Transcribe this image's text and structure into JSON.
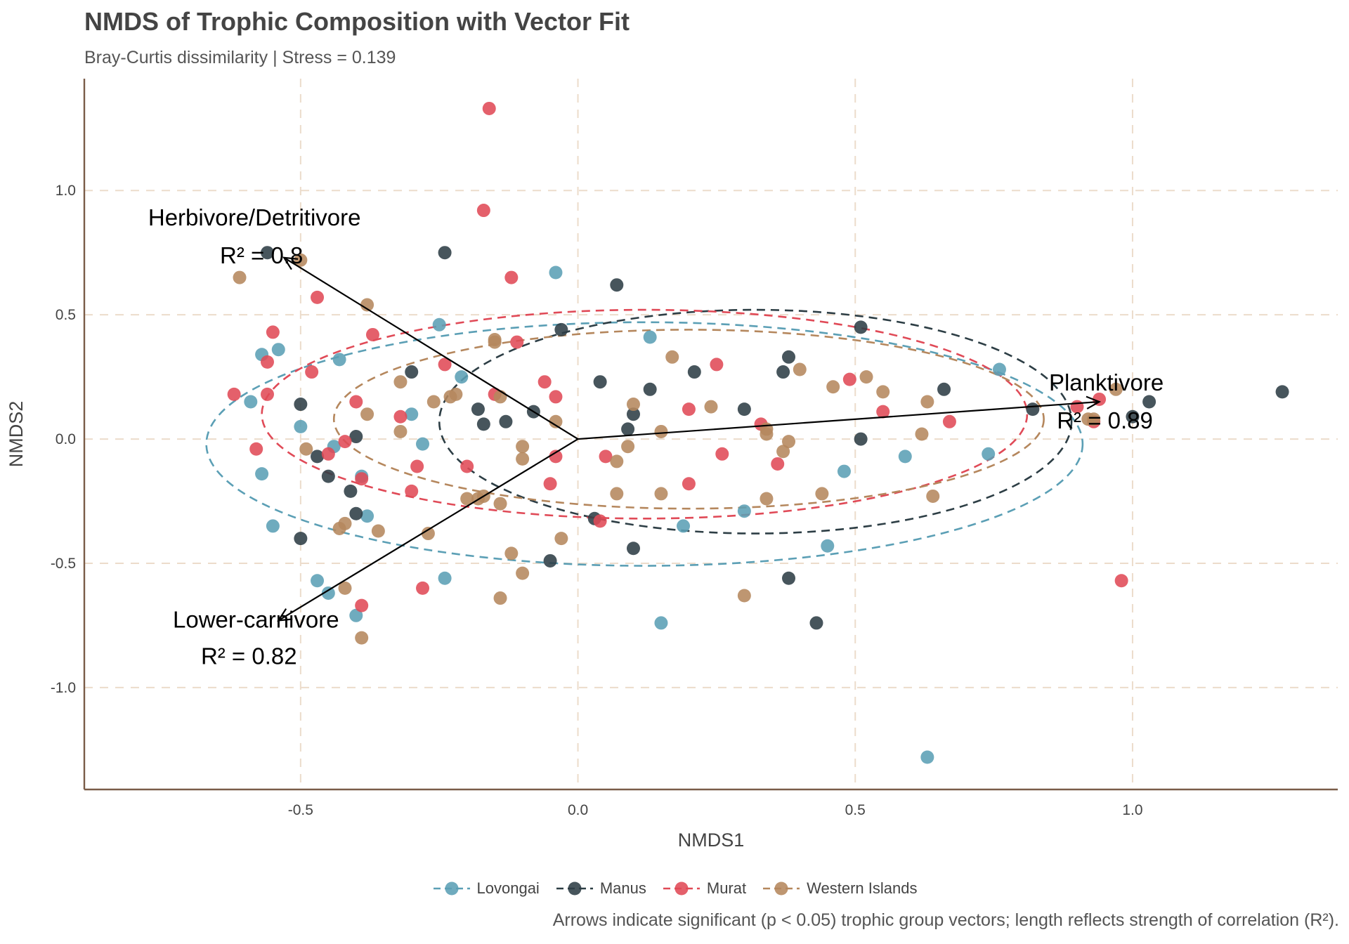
{
  "title": "NMDS of Trophic Composition with Vector Fit",
  "subtitle": "Bray-Curtis dissimilarity | Stress = 0.139",
  "caption": "Arrows indicate significant (p < 0.05) trophic group vectors; length reflects strength of correlation (R²).",
  "chart_data": {
    "type": "scatter",
    "xlabel": "NMDS1",
    "ylabel": "NMDS2",
    "xlim": [
      -0.89,
      1.37
    ],
    "ylim": [
      -1.41,
      1.45
    ],
    "x_ticks": [
      -0.5,
      0.0,
      0.5,
      1.0
    ],
    "x_tick_labels": [
      "-0.5",
      "0.0",
      "0.5",
      "1.0"
    ],
    "y_ticks": [
      -1.0,
      -0.5,
      0.0,
      0.5,
      1.0
    ],
    "y_tick_labels": [
      "-1.0",
      "-0.5",
      "0.0",
      "0.5",
      "1.0"
    ],
    "grid": true,
    "legend_position": "bottom",
    "series": [
      {
        "name": "Lovongai",
        "color": "#5b9fb5",
        "ellipse": {
          "cx": 0.12,
          "cy": -0.02,
          "rx": 0.79,
          "ry": 0.49
        },
        "points": [
          [
            -0.59,
            0.15
          ],
          [
            -0.57,
            0.34
          ],
          [
            -0.54,
            0.36
          ],
          [
            -0.57,
            -0.14
          ],
          [
            -0.55,
            -0.35
          ],
          [
            -0.5,
            0.05
          ],
          [
            -0.44,
            -0.03
          ],
          [
            -0.43,
            0.32
          ],
          [
            -0.39,
            -0.15
          ],
          [
            -0.38,
            -0.31
          ],
          [
            -0.47,
            -0.57
          ],
          [
            -0.45,
            -0.62
          ],
          [
            -0.4,
            -0.71
          ],
          [
            -0.3,
            0.1
          ],
          [
            -0.28,
            -0.02
          ],
          [
            -0.25,
            0.46
          ],
          [
            -0.24,
            -0.56
          ],
          [
            -0.21,
            0.25
          ],
          [
            -0.04,
            0.67
          ],
          [
            0.13,
            0.41
          ],
          [
            0.15,
            -0.74
          ],
          [
            0.19,
            -0.35
          ],
          [
            0.3,
            -0.29
          ],
          [
            0.45,
            -0.43
          ],
          [
            0.48,
            -0.13
          ],
          [
            0.59,
            -0.07
          ],
          [
            0.63,
            -1.28
          ],
          [
            0.74,
            -0.06
          ],
          [
            0.76,
            0.28
          ]
        ]
      },
      {
        "name": "Manus",
        "color": "#2d3e45",
        "ellipse": {
          "cx": 0.32,
          "cy": 0.07,
          "rx": 0.57,
          "ry": 0.45
        },
        "points": [
          [
            -0.56,
            0.75
          ],
          [
            -0.5,
            0.14
          ],
          [
            -0.5,
            -0.4
          ],
          [
            -0.47,
            -0.07
          ],
          [
            -0.45,
            -0.15
          ],
          [
            -0.41,
            -0.21
          ],
          [
            -0.4,
            -0.3
          ],
          [
            -0.4,
            0.01
          ],
          [
            -0.3,
            0.27
          ],
          [
            -0.24,
            0.75
          ],
          [
            -0.18,
            0.12
          ],
          [
            -0.17,
            0.06
          ],
          [
            -0.13,
            0.07
          ],
          [
            -0.08,
            0.11
          ],
          [
            -0.03,
            0.44
          ],
          [
            -0.05,
            -0.49
          ],
          [
            0.03,
            -0.32
          ],
          [
            0.04,
            0.23
          ],
          [
            0.07,
            0.62
          ],
          [
            0.09,
            0.04
          ],
          [
            0.1,
            0.1
          ],
          [
            0.13,
            0.2
          ],
          [
            0.1,
            -0.44
          ],
          [
            0.21,
            0.27
          ],
          [
            0.3,
            0.12
          ],
          [
            0.37,
            0.27
          ],
          [
            0.38,
            0.33
          ],
          [
            0.38,
            -0.56
          ],
          [
            0.43,
            -0.74
          ],
          [
            0.51,
            0.45
          ],
          [
            0.51,
            0.0
          ],
          [
            0.66,
            0.2
          ],
          [
            0.82,
            0.12
          ],
          [
            1.0,
            0.09
          ],
          [
            1.03,
            0.15
          ],
          [
            1.27,
            0.19
          ]
        ]
      },
      {
        "name": "Murat",
        "color": "#e04a57",
        "ellipse": {
          "cx": 0.12,
          "cy": 0.1,
          "rx": 0.69,
          "ry": 0.42
        },
        "points": [
          [
            -0.62,
            0.18
          ],
          [
            -0.58,
            -0.04
          ],
          [
            -0.56,
            0.31
          ],
          [
            -0.56,
            0.18
          ],
          [
            -0.55,
            0.43
          ],
          [
            -0.48,
            0.27
          ],
          [
            -0.47,
            0.57
          ],
          [
            -0.45,
            -0.06
          ],
          [
            -0.42,
            -0.01
          ],
          [
            -0.4,
            0.15
          ],
          [
            -0.39,
            -0.16
          ],
          [
            -0.39,
            -0.67
          ],
          [
            -0.37,
            0.42
          ],
          [
            -0.32,
            0.09
          ],
          [
            -0.3,
            -0.21
          ],
          [
            -0.29,
            -0.11
          ],
          [
            -0.28,
            -0.6
          ],
          [
            -0.24,
            0.3
          ],
          [
            -0.2,
            -0.11
          ],
          [
            -0.17,
            0.92
          ],
          [
            -0.16,
            1.33
          ],
          [
            -0.15,
            0.18
          ],
          [
            -0.12,
            0.65
          ],
          [
            -0.11,
            0.39
          ],
          [
            -0.06,
            0.23
          ],
          [
            -0.05,
            -0.18
          ],
          [
            -0.04,
            0.17
          ],
          [
            -0.04,
            -0.07
          ],
          [
            0.05,
            -0.07
          ],
          [
            0.04,
            -0.33
          ],
          [
            0.2,
            0.12
          ],
          [
            0.2,
            -0.18
          ],
          [
            0.25,
            0.3
          ],
          [
            0.26,
            -0.06
          ],
          [
            0.33,
            0.06
          ],
          [
            0.36,
            -0.1
          ],
          [
            0.49,
            0.24
          ],
          [
            0.55,
            0.11
          ],
          [
            0.67,
            0.07
          ],
          [
            0.9,
            0.13
          ],
          [
            0.94,
            0.16
          ],
          [
            0.93,
            0.07
          ],
          [
            0.98,
            -0.57
          ]
        ]
      },
      {
        "name": "Western Islands",
        "color": "#b5875d",
        "ellipse": {
          "cx": 0.2,
          "cy": 0.08,
          "rx": 0.64,
          "ry": 0.36
        },
        "points": [
          [
            -0.61,
            0.65
          ],
          [
            -0.5,
            0.72
          ],
          [
            -0.49,
            -0.04
          ],
          [
            -0.43,
            -0.36
          ],
          [
            -0.42,
            -0.34
          ],
          [
            -0.42,
            -0.6
          ],
          [
            -0.38,
            0.54
          ],
          [
            -0.38,
            0.1
          ],
          [
            -0.39,
            -0.8
          ],
          [
            -0.36,
            -0.37
          ],
          [
            -0.32,
            0.23
          ],
          [
            -0.32,
            0.03
          ],
          [
            -0.27,
            -0.38
          ],
          [
            -0.26,
            0.15
          ],
          [
            -0.23,
            0.17
          ],
          [
            -0.22,
            0.18
          ],
          [
            -0.2,
            -0.24
          ],
          [
            -0.18,
            -0.24
          ],
          [
            -0.17,
            -0.23
          ],
          [
            -0.15,
            0.4
          ],
          [
            -0.15,
            0.39
          ],
          [
            -0.14,
            0.17
          ],
          [
            -0.14,
            -0.26
          ],
          [
            -0.14,
            -0.64
          ],
          [
            -0.12,
            -0.46
          ],
          [
            -0.1,
            -0.54
          ],
          [
            -0.1,
            -0.03
          ],
          [
            -0.1,
            -0.08
          ],
          [
            -0.04,
            0.07
          ],
          [
            -0.03,
            -0.4
          ],
          [
            0.07,
            -0.22
          ],
          [
            0.07,
            -0.09
          ],
          [
            0.09,
            -0.03
          ],
          [
            0.1,
            0.14
          ],
          [
            0.15,
            0.03
          ],
          [
            0.15,
            -0.22
          ],
          [
            0.17,
            0.33
          ],
          [
            0.24,
            0.13
          ],
          [
            0.3,
            -0.63
          ],
          [
            0.34,
            -0.24
          ],
          [
            0.34,
            0.02
          ],
          [
            0.34,
            0.04
          ],
          [
            0.37,
            -0.05
          ],
          [
            0.38,
            -0.01
          ],
          [
            0.4,
            0.28
          ],
          [
            0.44,
            -0.22
          ],
          [
            0.46,
            0.21
          ],
          [
            0.52,
            0.25
          ],
          [
            0.55,
            0.19
          ],
          [
            0.62,
            0.02
          ],
          [
            0.63,
            0.15
          ],
          [
            0.64,
            -0.23
          ],
          [
            0.92,
            0.08
          ],
          [
            0.93,
            0.08
          ],
          [
            0.97,
            0.2
          ]
        ]
      }
    ],
    "vectors": [
      {
        "name": "Herbivore/Detritivore",
        "r2_label": "R² = 0.8",
        "x": -0.53,
        "y": 0.73
      },
      {
        "name": "Lower-carnivore",
        "r2_label": "R² = 0.82",
        "x": -0.54,
        "y": -0.73
      },
      {
        "name": "Planktivore",
        "r2_label": "R² = 0.89",
        "x": 0.94,
        "y": 0.15
      }
    ]
  }
}
